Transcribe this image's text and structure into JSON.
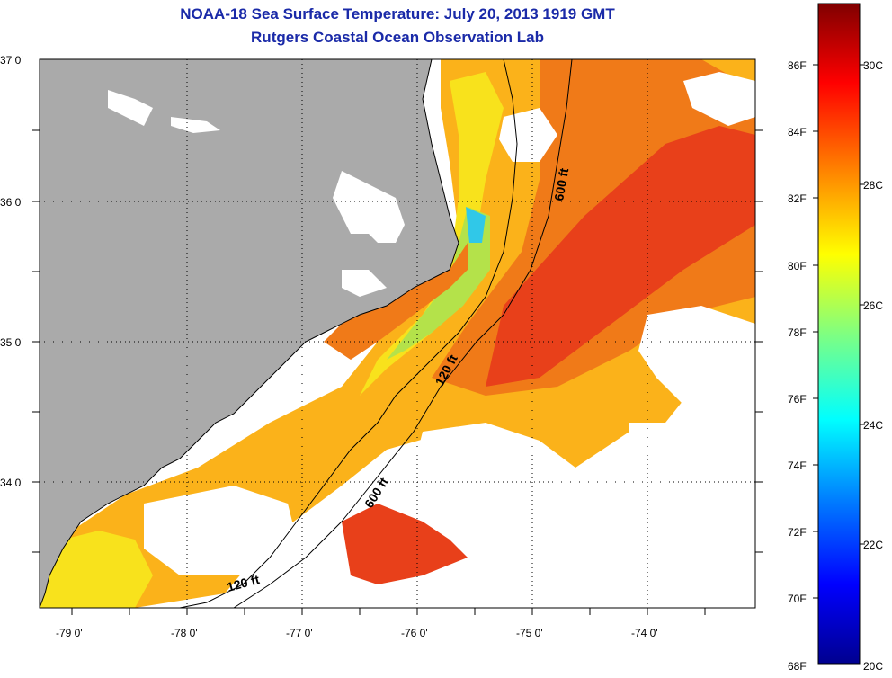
{
  "header": {
    "title": "NOAA-18 Sea Surface Temperature:  July 20, 2013 1919 GMT",
    "subtitle": "Rutgers Coastal Ocean Observation Lab"
  },
  "axes": {
    "lat_labels": [
      "37 0'",
      "36 0'",
      "35 0'",
      "34 0'"
    ],
    "lon_labels": [
      "-79 0'",
      "-78 0'",
      "-77 0'",
      "-76 0'",
      "-75 0'",
      "-74 0'"
    ]
  },
  "colorbar": {
    "fahrenheit_labels": [
      "86F",
      "84F",
      "82F",
      "80F",
      "78F",
      "76F",
      "74F",
      "72F",
      "70F",
      "68F"
    ],
    "celsius_labels": [
      "30C",
      "28C",
      "26C",
      "24C",
      "22C",
      "20C"
    ],
    "colors": [
      "#00008f",
      "#0000ff",
      "#0080ff",
      "#00ffff",
      "#80ff80",
      "#ffff00",
      "#ff8000",
      "#ff0000",
      "#800000"
    ]
  },
  "contours": {
    "labels": [
      "600 ft",
      "120 ft",
      "600 ft",
      "120 ft"
    ]
  },
  "colors": {
    "land": "#aaaaaa",
    "cloud": "#ffffff",
    "title": "#1a2aa8",
    "warm": "#f07a18",
    "mid": "#fbb21a",
    "cool": "#f8e21c",
    "green": "#b4e24a",
    "cyan": "#30c8e8",
    "hot": "#e8401a"
  }
}
